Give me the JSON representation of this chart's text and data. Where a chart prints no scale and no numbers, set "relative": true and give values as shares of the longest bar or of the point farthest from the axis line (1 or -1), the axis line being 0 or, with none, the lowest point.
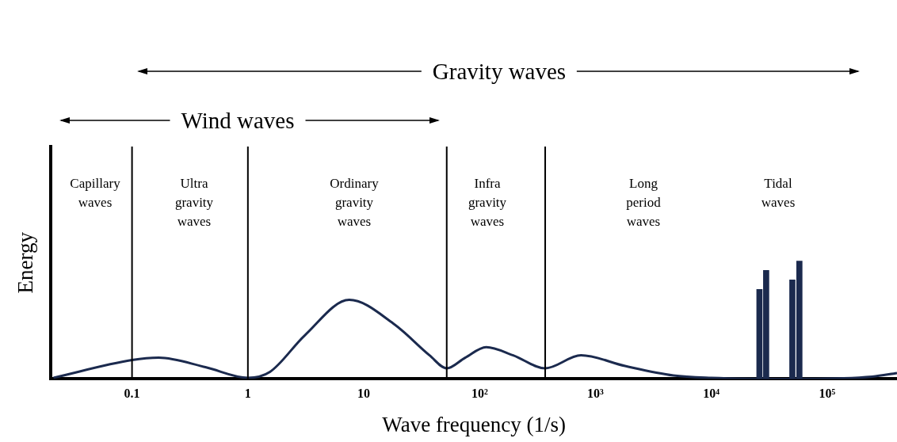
{
  "chart_data": {
    "type": "line",
    "relative": true,
    "xlabel": "Wave frequency (1/s)",
    "ylabel": "Energy",
    "log": "x",
    "grid": false,
    "legend": false,
    "marker": "none",
    "xlim": [
      0.02,
      400000
    ],
    "xticks": [
      0.1,
      1,
      10,
      {
        "value": 100,
        "label": "10²"
      },
      {
        "value": 1000,
        "label": "10³"
      },
      {
        "value": 10000,
        "label": "10⁴"
      },
      {
        "value": 100000,
        "label": "10⁵"
      }
    ],
    "series": [
      {
        "color": "#1b2a4e",
        "x": [
          0.021,
          0.1,
          0.17,
          0.43,
          1,
          1.55,
          3.1,
          7.5,
          18,
          37,
          52,
          75,
          114,
          195,
          368,
          750,
          1800,
          4700,
          10000,
          50000,
          245000,
          400000
        ],
        "values": [
          0.01,
          0.16,
          0.18,
          0.1,
          0.01,
          0.06,
          0.37,
          0.67,
          0.47,
          0.2,
          0.09,
          0.18,
          0.27,
          0.2,
          0.09,
          0.2,
          0.11,
          0.03,
          0.01,
          0,
          0.02,
          0.05
        ]
      },
      {
        "type": "bar",
        "color": "#1b2a4e",
        "x": [
          26000,
          29700,
          50000,
          57500
        ],
        "values": [
          0.76,
          0.92,
          0.84,
          1
        ]
      }
    ],
    "ref_lines": [
      {
        "axis": "x",
        "value": 0.1,
        "color": "#000000"
      },
      {
        "axis": "x",
        "value": 1,
        "color": "#000000"
      },
      {
        "axis": "x",
        "value": 52,
        "color": "#000000"
      },
      {
        "axis": "x",
        "value": 368,
        "color": "#000000"
      }
    ],
    "annotations": [
      "Gravity waves",
      "Wind waves",
      "Capillary\nwaves",
      "Ultra\ngravity\nwaves",
      "Ordinary\ngravity\nwaves",
      "Infra\ngravity\nwaves",
      "Long\nperiod\nwaves",
      "Tidal\nwaves"
    ]
  }
}
